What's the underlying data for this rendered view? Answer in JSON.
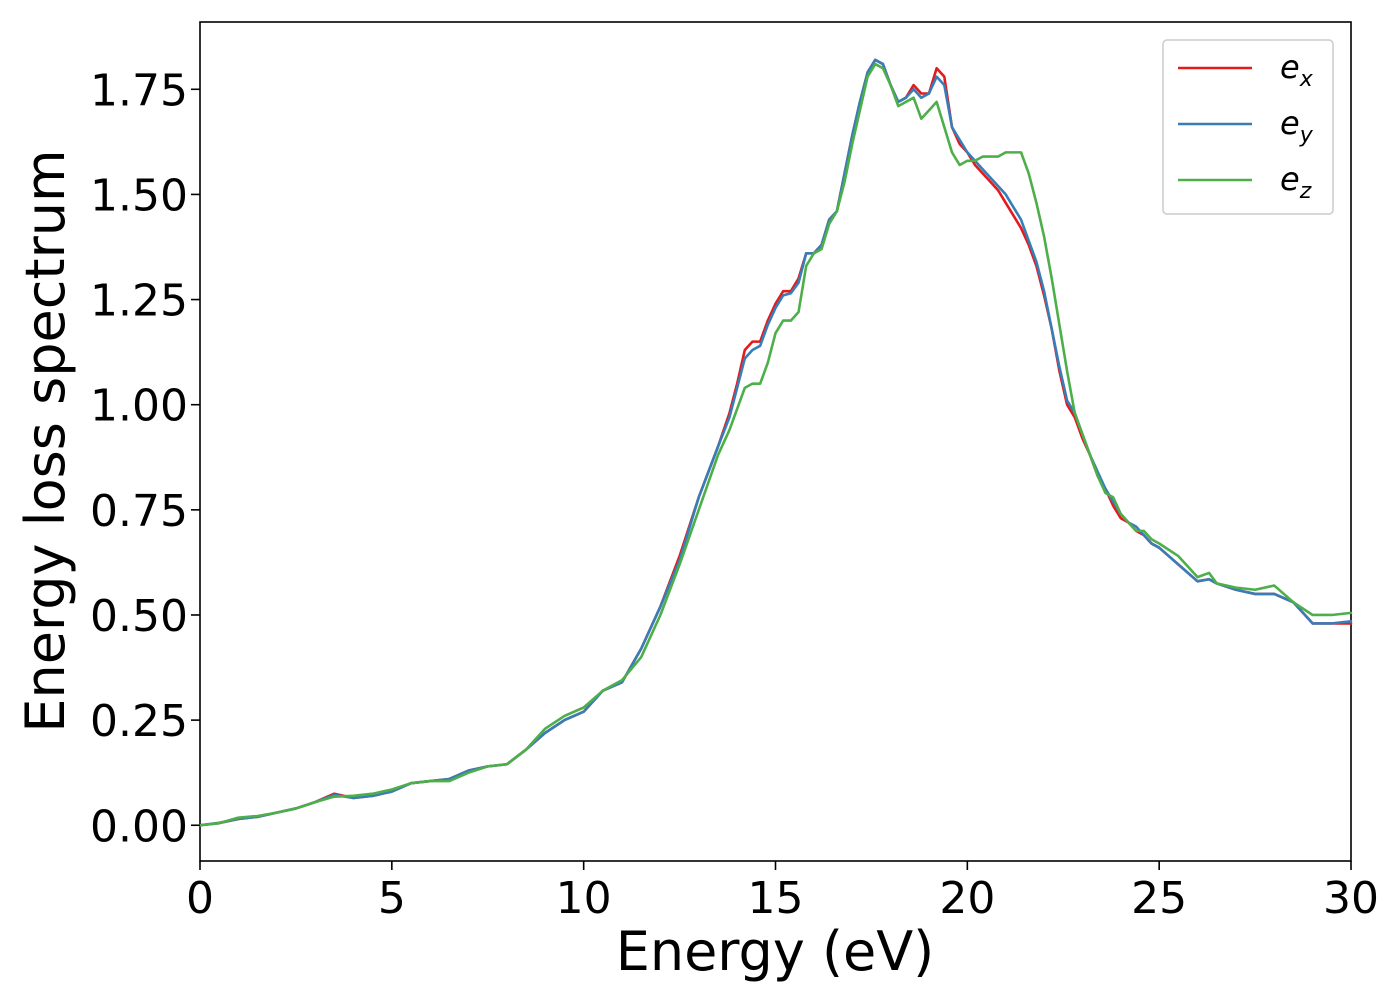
{
  "chart_data": {
    "type": "line",
    "title": "",
    "xlabel": "Energy (eV)",
    "ylabel": "Energy loss spectrum",
    "xlim": [
      0,
      30
    ],
    "ylim": [
      -0.085,
      1.91
    ],
    "xticks": [
      0,
      5,
      10,
      15,
      20,
      25,
      30
    ],
    "xtick_labels": [
      "0",
      "5",
      "10",
      "15",
      "20",
      "25",
      "30"
    ],
    "yticks": [
      0.0,
      0.25,
      0.5,
      0.75,
      1.0,
      1.25,
      1.5,
      1.75
    ],
    "ytick_labels": [
      "0.00",
      "0.25",
      "0.50",
      "0.75",
      "1.00",
      "1.25",
      "1.50",
      "1.75"
    ],
    "grid": false,
    "legend_position": "top-right",
    "series": [
      {
        "name": "e_x",
        "label_base": "e",
        "label_sub": "x",
        "color": "#e41a1c",
        "x": [
          0,
          0.5,
          1,
          1.5,
          2,
          2.5,
          3,
          3.5,
          4,
          4.5,
          5,
          5.5,
          6,
          6.5,
          7,
          7.5,
          8,
          8.5,
          9,
          9.5,
          10,
          10.5,
          11,
          11.5,
          12,
          12.5,
          13,
          13.5,
          13.8,
          14,
          14.2,
          14.4,
          14.6,
          14.8,
          15,
          15.2,
          15.4,
          15.6,
          15.8,
          16,
          16.2,
          16.4,
          16.6,
          16.8,
          17,
          17.2,
          17.4,
          17.6,
          17.8,
          18,
          18.2,
          18.4,
          18.6,
          18.8,
          19,
          19.2,
          19.4,
          19.6,
          19.8,
          20,
          20.2,
          20.4,
          20.6,
          20.8,
          21,
          21.2,
          21.4,
          21.6,
          21.8,
          22,
          22.2,
          22.4,
          22.6,
          22.8,
          23,
          23.2,
          23.4,
          23.6,
          23.8,
          24,
          24.2,
          24.4,
          24.6,
          24.8,
          25,
          25.5,
          26,
          26.3,
          26.5,
          27,
          27.5,
          28,
          28.5,
          29,
          29.5,
          30
        ],
        "y": [
          0.0,
          0.005,
          0.015,
          0.02,
          0.03,
          0.04,
          0.055,
          0.075,
          0.065,
          0.07,
          0.08,
          0.1,
          0.105,
          0.11,
          0.13,
          0.14,
          0.145,
          0.18,
          0.22,
          0.25,
          0.27,
          0.32,
          0.34,
          0.42,
          0.52,
          0.64,
          0.78,
          0.9,
          0.98,
          1.05,
          1.13,
          1.15,
          1.15,
          1.2,
          1.24,
          1.27,
          1.27,
          1.3,
          1.36,
          1.36,
          1.38,
          1.44,
          1.46,
          1.55,
          1.64,
          1.72,
          1.79,
          1.82,
          1.81,
          1.76,
          1.72,
          1.73,
          1.76,
          1.74,
          1.74,
          1.8,
          1.78,
          1.66,
          1.62,
          1.6,
          1.57,
          1.55,
          1.53,
          1.51,
          1.48,
          1.45,
          1.42,
          1.38,
          1.33,
          1.26,
          1.18,
          1.08,
          1.0,
          0.97,
          0.92,
          0.88,
          0.83,
          0.8,
          0.76,
          0.73,
          0.72,
          0.7,
          0.69,
          0.67,
          0.66,
          0.62,
          0.58,
          0.585,
          0.575,
          0.56,
          0.55,
          0.55,
          0.53,
          0.48,
          0.48,
          0.48
        ]
      },
      {
        "name": "e_y",
        "label_base": "e",
        "label_sub": "y",
        "color": "#377eb8",
        "x": [
          0,
          0.5,
          1,
          1.5,
          2,
          2.5,
          3,
          3.5,
          4,
          4.5,
          5,
          5.5,
          6,
          6.5,
          7,
          7.5,
          8,
          8.5,
          9,
          9.5,
          10,
          10.5,
          11,
          11.5,
          12,
          12.5,
          13,
          13.5,
          13.8,
          14,
          14.2,
          14.4,
          14.6,
          14.8,
          15,
          15.2,
          15.4,
          15.6,
          15.8,
          16,
          16.2,
          16.4,
          16.6,
          16.8,
          17,
          17.2,
          17.4,
          17.6,
          17.8,
          18,
          18.2,
          18.4,
          18.6,
          18.8,
          19,
          19.2,
          19.4,
          19.6,
          19.8,
          20,
          20.2,
          20.4,
          20.6,
          20.8,
          21,
          21.2,
          21.4,
          21.6,
          21.8,
          22,
          22.2,
          22.4,
          22.6,
          22.8,
          23,
          23.2,
          23.4,
          23.6,
          23.8,
          24,
          24.2,
          24.4,
          24.6,
          24.8,
          25,
          25.5,
          26,
          26.3,
          26.5,
          27,
          27.5,
          28,
          28.5,
          29,
          29.5,
          30
        ],
        "y": [
          0.0,
          0.006,
          0.015,
          0.02,
          0.03,
          0.04,
          0.055,
          0.072,
          0.065,
          0.07,
          0.08,
          0.1,
          0.105,
          0.11,
          0.13,
          0.14,
          0.145,
          0.18,
          0.22,
          0.25,
          0.27,
          0.32,
          0.34,
          0.42,
          0.52,
          0.63,
          0.78,
          0.9,
          0.97,
          1.04,
          1.11,
          1.13,
          1.14,
          1.19,
          1.23,
          1.26,
          1.265,
          1.29,
          1.36,
          1.36,
          1.38,
          1.44,
          1.46,
          1.55,
          1.64,
          1.72,
          1.79,
          1.82,
          1.81,
          1.76,
          1.72,
          1.73,
          1.75,
          1.73,
          1.74,
          1.78,
          1.76,
          1.66,
          1.63,
          1.6,
          1.58,
          1.56,
          1.54,
          1.52,
          1.5,
          1.47,
          1.44,
          1.39,
          1.34,
          1.27,
          1.18,
          1.09,
          1.01,
          0.98,
          0.93,
          0.88,
          0.84,
          0.8,
          0.77,
          0.74,
          0.72,
          0.71,
          0.69,
          0.67,
          0.66,
          0.62,
          0.58,
          0.585,
          0.575,
          0.56,
          0.55,
          0.55,
          0.53,
          0.48,
          0.48,
          0.485
        ]
      },
      {
        "name": "e_z",
        "label_base": "e",
        "label_sub": "z",
        "color": "#4daf4a",
        "x": [
          0,
          0.5,
          1,
          1.5,
          2,
          2.5,
          3,
          3.5,
          4,
          4.5,
          5,
          5.5,
          6,
          6.5,
          7,
          7.5,
          8,
          8.5,
          9,
          9.5,
          10,
          10.5,
          11,
          11.5,
          12,
          12.5,
          13,
          13.5,
          13.8,
          14,
          14.2,
          14.4,
          14.6,
          14.8,
          15,
          15.2,
          15.4,
          15.6,
          15.8,
          16,
          16.2,
          16.4,
          16.6,
          16.8,
          17,
          17.2,
          17.4,
          17.6,
          17.8,
          18,
          18.2,
          18.4,
          18.6,
          18.8,
          19,
          19.2,
          19.4,
          19.6,
          19.8,
          20,
          20.2,
          20.4,
          20.6,
          20.8,
          21,
          21.2,
          21.4,
          21.6,
          21.8,
          22,
          22.2,
          22.4,
          22.6,
          22.8,
          23,
          23.2,
          23.4,
          23.6,
          23.8,
          24,
          24.2,
          24.4,
          24.6,
          24.8,
          25,
          25.5,
          26,
          26.3,
          26.5,
          27,
          27.5,
          28,
          28.5,
          29,
          29.5,
          30
        ],
        "y": [
          0.0,
          0.005,
          0.018,
          0.022,
          0.03,
          0.04,
          0.055,
          0.068,
          0.07,
          0.075,
          0.085,
          0.1,
          0.105,
          0.105,
          0.125,
          0.14,
          0.145,
          0.18,
          0.23,
          0.26,
          0.28,
          0.32,
          0.345,
          0.4,
          0.5,
          0.62,
          0.75,
          0.88,
          0.94,
          0.99,
          1.04,
          1.05,
          1.05,
          1.1,
          1.17,
          1.2,
          1.2,
          1.22,
          1.33,
          1.36,
          1.37,
          1.43,
          1.46,
          1.53,
          1.62,
          1.7,
          1.78,
          1.81,
          1.8,
          1.76,
          1.71,
          1.72,
          1.73,
          1.68,
          1.7,
          1.72,
          1.66,
          1.6,
          1.57,
          1.58,
          1.58,
          1.59,
          1.59,
          1.59,
          1.6,
          1.6,
          1.6,
          1.55,
          1.48,
          1.4,
          1.3,
          1.19,
          1.08,
          0.98,
          0.93,
          0.88,
          0.83,
          0.79,
          0.78,
          0.74,
          0.72,
          0.7,
          0.7,
          0.68,
          0.67,
          0.64,
          0.59,
          0.6,
          0.575,
          0.565,
          0.56,
          0.57,
          0.53,
          0.5,
          0.5,
          0.505
        ]
      }
    ]
  }
}
